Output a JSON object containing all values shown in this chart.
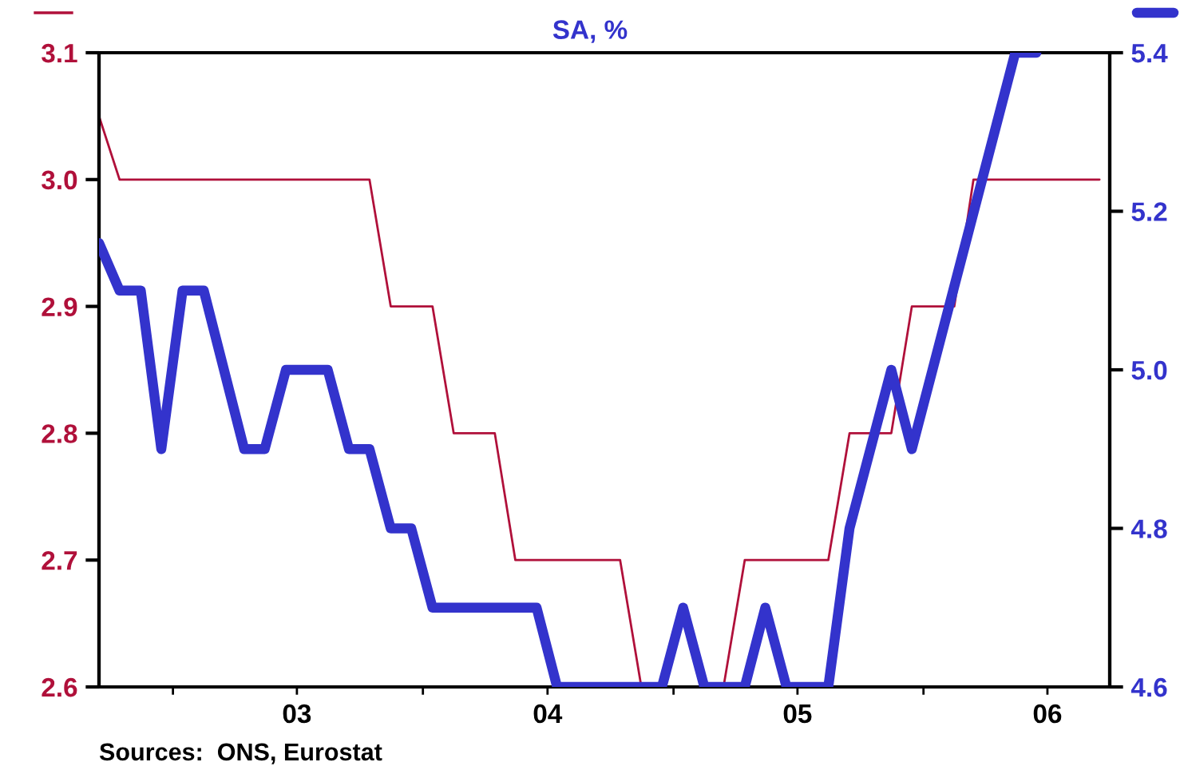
{
  "chart_data": {
    "type": "line",
    "subtitle": "SA, %",
    "annotations": [
      "Sources:  ONS, Eurostat"
    ],
    "xlim": [
      "2002-09-15",
      "2006-09-30"
    ],
    "xticks": [
      {
        "value": "2003-01-01",
        "label": null
      },
      {
        "value": "2003-07-01",
        "label": "03"
      },
      {
        "value": "2004-01-01",
        "label": null
      },
      {
        "value": "2004-07-01",
        "label": "04"
      },
      {
        "value": "2005-01-01",
        "label": null
      },
      {
        "value": "2005-07-01",
        "label": "05"
      },
      {
        "value": "2006-01-01",
        "label": null
      },
      {
        "value": "2006-07-01",
        "label": "06"
      }
    ],
    "ylim": [
      2.6,
      3.1
    ],
    "yticks": [
      {
        "value": 2.6,
        "label": "2.6"
      },
      {
        "value": 2.7,
        "label": "2.7"
      },
      {
        "value": 2.8,
        "label": "2.8"
      },
      {
        "value": 2.9,
        "label": "2.9"
      },
      {
        "value": 3.0,
        "label": "3.0"
      },
      {
        "value": 3.1,
        "label": "3.1"
      }
    ],
    "y2lim": [
      4.6,
      5.4
    ],
    "y2ticks": [
      {
        "value": 4.6,
        "label": "4.6"
      },
      {
        "value": 4.8,
        "label": "4.8"
      },
      {
        "value": 5.0,
        "label": "5.0"
      },
      {
        "value": 5.2,
        "label": "5.2"
      },
      {
        "value": 5.4,
        "label": "5.4"
      }
    ],
    "grid": false,
    "legend": false,
    "series": [
      {
        "color": "#b0103a",
        "x": [
          "2002-09-15",
          "2002-10-15",
          "2003-10-15",
          "2003-11-15",
          "2004-01-15",
          "2004-02-15",
          "2004-04-15",
          "2004-05-15",
          "2004-10-15",
          "2004-11-15",
          "2005-03-15",
          "2005-04-15",
          "2005-08-15",
          "2005-09-15",
          "2005-11-15",
          "2005-12-15",
          "2006-02-15",
          "2006-03-15",
          "2006-09-15"
        ],
        "values": [
          3.05,
          3.0,
          3.0,
          2.9,
          2.9,
          2.8,
          2.8,
          2.7,
          2.7,
          2.6,
          2.6,
          2.7,
          2.7,
          2.8,
          2.8,
          2.9,
          2.9,
          3.0,
          3.0
        ]
      },
      {
        "color": "#3333cc",
        "axis": "y2",
        "x": [
          "2002-09-15",
          "2002-10-15",
          "2002-11-15",
          "2002-12-15",
          "2003-01-15",
          "2003-02-15",
          "2003-04-15",
          "2003-05-15",
          "2003-06-15",
          "2003-08-15",
          "2003-09-15",
          "2003-10-15",
          "2003-11-15",
          "2003-12-15",
          "2004-01-15",
          "2004-06-15",
          "2004-07-15",
          "2004-12-15",
          "2005-01-15",
          "2005-02-15",
          "2005-04-15",
          "2005-05-15",
          "2005-06-15",
          "2005-08-15",
          "2005-09-15",
          "2005-11-15",
          "2005-12-15",
          "2006-05-15",
          "2006-06-15"
        ],
        "values": [
          5.16,
          5.1,
          5.1,
          4.9,
          5.1,
          5.1,
          4.9,
          4.9,
          5.0,
          5.0,
          4.9,
          4.9,
          4.8,
          4.8,
          4.7,
          4.7,
          4.6,
          4.6,
          4.7,
          4.6,
          4.6,
          4.7,
          4.6,
          4.6,
          4.8,
          5.0,
          4.9,
          5.4,
          5.4
        ]
      }
    ]
  }
}
